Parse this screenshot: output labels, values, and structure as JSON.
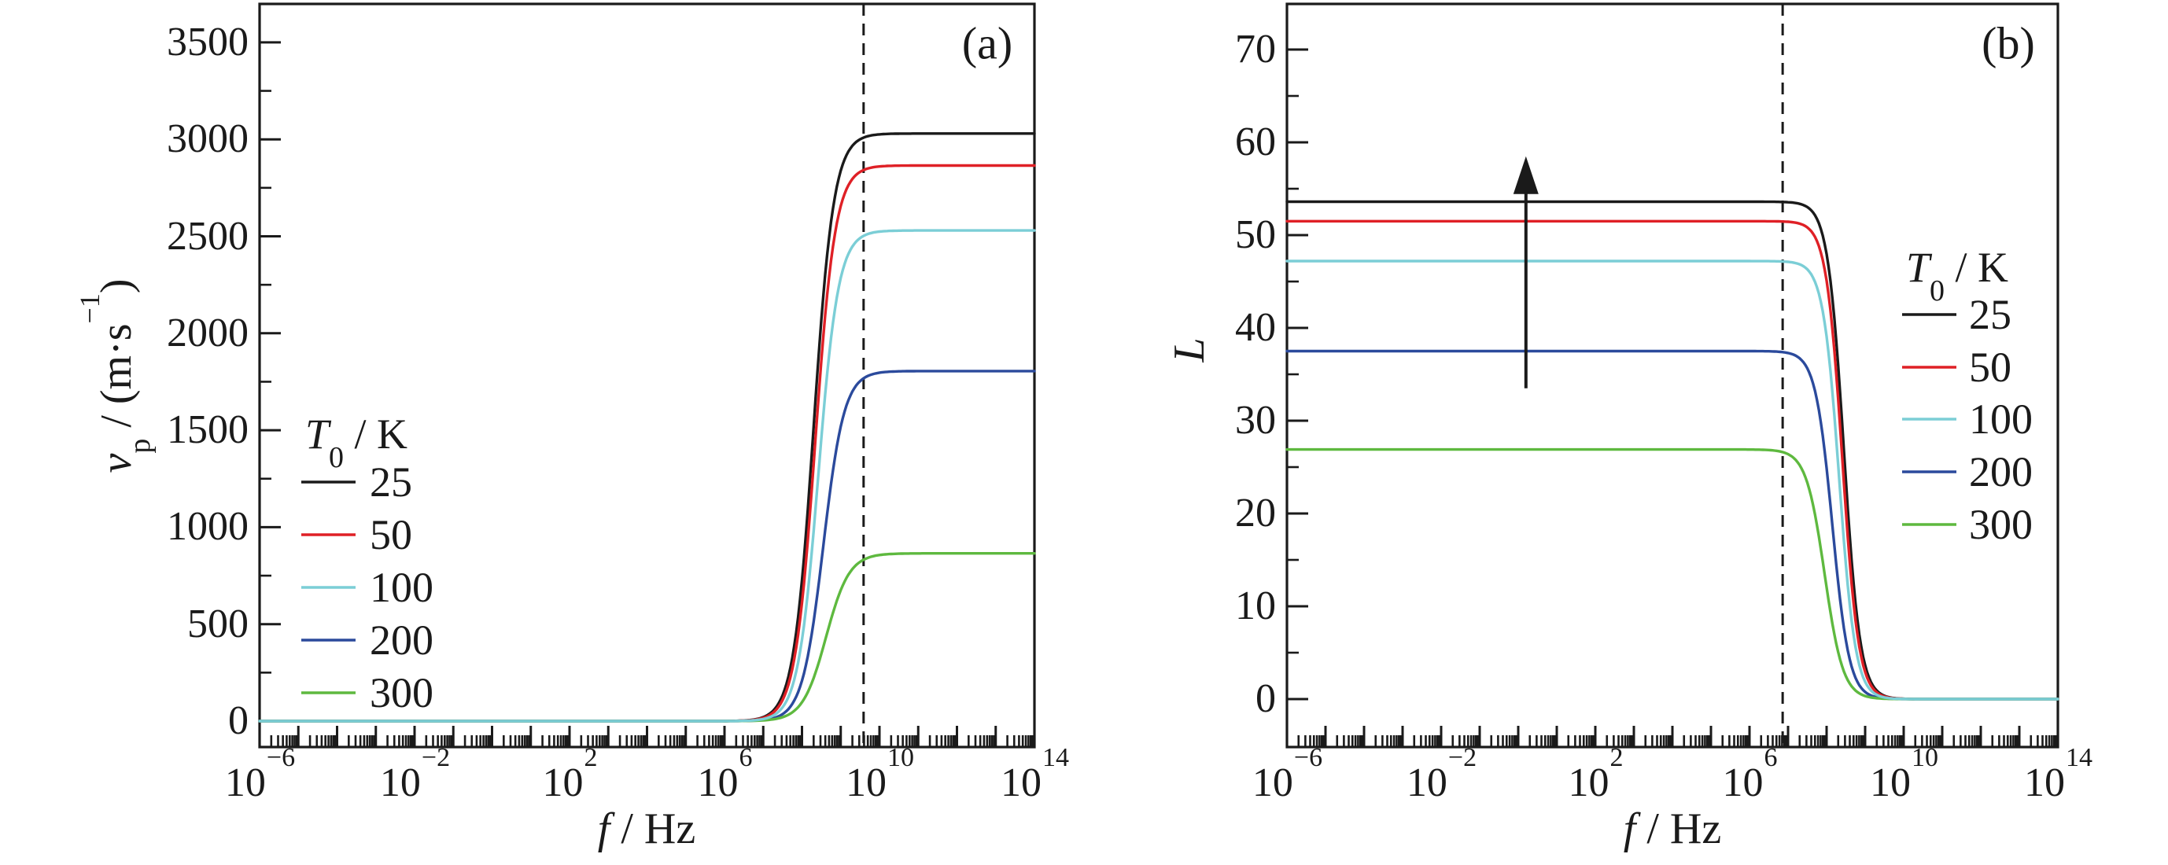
{
  "figure": {
    "background": "#ffffff",
    "ink_color": "#1a1a1a"
  },
  "panels": {
    "a": {
      "tag": "(a)",
      "ylabel_var": "v",
      "ylabel_sub": "p",
      "ylabel_mid": " / (m·s",
      "ylabel_sup": "−1",
      "ylabel_end": ")",
      "xlabel_var": "f",
      "xlabel_rest": " / Hz",
      "legend_title_var": "T",
      "legend_title_sub": "0",
      "legend_title_rest": " / K",
      "legend_items": [
        "25",
        "50",
        "100",
        "200",
        "300"
      ]
    },
    "b": {
      "tag": "(b)",
      "ylabel": "L",
      "xlabel_var": "f",
      "xlabel_rest": " / Hz",
      "legend_title_var": "T",
      "legend_title_sub": "0",
      "legend_title_rest": " / K",
      "legend_items": [
        "25",
        "50",
        "100",
        "200",
        "300"
      ]
    }
  },
  "chart_data": [
    {
      "type": "line",
      "panel": "a",
      "title": "(a)",
      "xlabel": "f / Hz",
      "ylabel": "v_p / (m·s^-1)",
      "xscale": "log",
      "xlim_log10": [
        -6,
        14
      ],
      "ylim": [
        -140,
        3700
      ],
      "ytick_major_step": 500,
      "ytick_minor_step": 250,
      "ytick_values": [
        0,
        500,
        1000,
        1500,
        2000,
        2500,
        3000,
        3500
      ],
      "ytick_labels": [
        "0",
        "500",
        "1000",
        "1500",
        "2000",
        "2500",
        "3000",
        "3500"
      ],
      "xtick_labeled_decades": [
        -6,
        -2,
        2,
        6,
        10,
        14
      ],
      "xtick_label_exponents": [
        "−6",
        "−2",
        "2",
        "6",
        "10",
        "14"
      ],
      "grid": false,
      "dashed_vline_log10f": 9.59,
      "legend_title": "T0 / K",
      "legend_position": "center-left",
      "curve_shape": "sigmoid-rise",
      "series": [
        {
          "name": "25",
          "color": "#1a1a1a",
          "low_f_value": 0,
          "plateau_value": 3030,
          "transition_log10f": 8.3,
          "transition_width_decades": 0.26
        },
        {
          "name": "50",
          "color": "#df2026",
          "low_f_value": 0,
          "plateau_value": 2865,
          "transition_log10f": 8.34,
          "transition_width_decades": 0.26
        },
        {
          "name": "100",
          "color": "#7bced6",
          "low_f_value": 0,
          "plateau_value": 2530,
          "transition_log10f": 8.42,
          "transition_width_decades": 0.26
        },
        {
          "name": "200",
          "color": "#2b4a9c",
          "low_f_value": 0,
          "plateau_value": 1805,
          "transition_log10f": 8.55,
          "transition_width_decades": 0.27
        },
        {
          "name": "300",
          "color": "#5eb93f",
          "low_f_value": 0,
          "plateau_value": 865,
          "transition_log10f": 8.62,
          "transition_width_decades": 0.3
        }
      ]
    },
    {
      "type": "line",
      "panel": "b",
      "title": "(b)",
      "xlabel": "f / Hz",
      "ylabel": "L",
      "xscale": "log",
      "xlim_log10": [
        -6,
        14
      ],
      "ylim": [
        -5,
        75
      ],
      "ytick_major_step": 10,
      "ytick_minor_step": 5,
      "ytick_values": [
        0,
        10,
        20,
        30,
        40,
        50,
        60,
        70
      ],
      "ytick_labels": [
        "0",
        "10",
        "20",
        "30",
        "40",
        "50",
        "60",
        "70"
      ],
      "xtick_labeled_decades": [
        -6,
        -2,
        2,
        6,
        10,
        14
      ],
      "xtick_label_exponents": [
        "−6",
        "−2",
        "2",
        "6",
        "10",
        "14"
      ],
      "grid": false,
      "dashed_vline_log10f": 6.86,
      "legend_title": "T0 / K",
      "legend_position": "center-right",
      "curve_shape": "sigmoid-fall",
      "arrow_annotation": {
        "log10f": 0.2,
        "value_from": 33.5,
        "value_to": 58.5,
        "direction": "up"
      },
      "series": [
        {
          "name": "25",
          "color": "#1a1a1a",
          "plateau_value": 53.6,
          "high_f_value": 0,
          "transition_log10f": 8.45,
          "transition_width_decades": 0.21
        },
        {
          "name": "50",
          "color": "#df2026",
          "plateau_value": 51.5,
          "high_f_value": 0,
          "transition_log10f": 8.41,
          "transition_width_decades": 0.21
        },
        {
          "name": "100",
          "color": "#7bced6",
          "plateau_value": 47.2,
          "high_f_value": 0,
          "transition_log10f": 8.33,
          "transition_width_decades": 0.21
        },
        {
          "name": "200",
          "color": "#2b4a9c",
          "plateau_value": 37.5,
          "high_f_value": 0,
          "transition_log10f": 8.15,
          "transition_width_decades": 0.22
        },
        {
          "name": "300",
          "color": "#5eb93f",
          "plateau_value": 26.9,
          "high_f_value": 0,
          "transition_log10f": 7.95,
          "transition_width_decades": 0.24
        }
      ]
    }
  ]
}
